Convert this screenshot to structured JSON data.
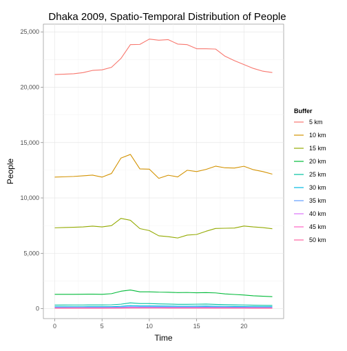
{
  "chart_data": {
    "type": "line",
    "title": "Dhaka 2009, Spatio-Temporal Distribution of People",
    "xlabel": "Time",
    "ylabel": "People",
    "xlim": [
      -1.2,
      24.2
    ],
    "ylim": [
      -900,
      25700
    ],
    "x_ticks": [
      0,
      5,
      10,
      15,
      20
    ],
    "y_ticks": [
      0,
      5000,
      10000,
      15000,
      20000,
      25000
    ],
    "y_tick_labels": [
      "0",
      "5,000",
      "10,000",
      "15,000",
      "20,000",
      "25,000"
    ],
    "grid": true,
    "legend": {
      "title": "Buffer",
      "placement": "right"
    },
    "x": [
      0,
      1,
      2,
      3,
      4,
      5,
      6,
      7,
      8,
      9,
      10,
      11,
      12,
      13,
      14,
      15,
      16,
      17,
      18,
      19,
      20,
      21,
      22,
      23
    ],
    "series": [
      {
        "name": "5 km",
        "color": "#F8766D",
        "values": [
          21150,
          21180,
          21220,
          21320,
          21520,
          21570,
          21800,
          22600,
          23850,
          23870,
          24350,
          24250,
          24300,
          23900,
          23850,
          23480,
          23480,
          23450,
          22800,
          22400,
          22050,
          21700,
          21450,
          21330
        ]
      },
      {
        "name": "10 km",
        "color": "#D39200",
        "values": [
          11880,
          11910,
          11940,
          12000,
          12060,
          11880,
          12210,
          13600,
          13930,
          12620,
          12600,
          11770,
          12050,
          11900,
          12500,
          12380,
          12580,
          12870,
          12720,
          12700,
          12860,
          12550,
          12380,
          12150
        ]
      },
      {
        "name": "15 km",
        "color": "#93AA00",
        "values": [
          7300,
          7330,
          7350,
          7380,
          7450,
          7380,
          7500,
          8150,
          7980,
          7230,
          7050,
          6580,
          6500,
          6380,
          6640,
          6700,
          6990,
          7240,
          7260,
          7280,
          7460,
          7380,
          7320,
          7220
        ]
      },
      {
        "name": "20 km",
        "color": "#00BA38",
        "values": [
          1290,
          1290,
          1290,
          1300,
          1310,
          1290,
          1350,
          1570,
          1680,
          1520,
          1520,
          1490,
          1480,
          1450,
          1460,
          1430,
          1450,
          1420,
          1330,
          1280,
          1230,
          1160,
          1120,
          1080
        ]
      },
      {
        "name": "25 km",
        "color": "#00C19F",
        "values": [
          320,
          325,
          330,
          330,
          335,
          335,
          345,
          400,
          520,
          460,
          460,
          430,
          410,
          390,
          390,
          400,
          410,
          380,
          360,
          340,
          330,
          310,
          295,
          285
        ]
      },
      {
        "name": "30 km",
        "color": "#00B9E3",
        "values": [
          170,
          172,
          174,
          175,
          176,
          176,
          180,
          210,
          280,
          250,
          250,
          240,
          230,
          220,
          220,
          225,
          230,
          215,
          205,
          195,
          190,
          180,
          172,
          168
        ]
      },
      {
        "name": "35 km",
        "color": "#619CFF",
        "values": [
          110,
          111,
          112,
          113,
          114,
          114,
          117,
          135,
          175,
          160,
          160,
          152,
          146,
          140,
          140,
          143,
          146,
          138,
          132,
          126,
          122,
          117,
          113,
          110
        ]
      },
      {
        "name": "40 km",
        "color": "#DB72FB",
        "values": [
          80,
          81,
          81,
          82,
          82,
          82,
          84,
          96,
          120,
          110,
          110,
          105,
          101,
          98,
          98,
          100,
          101,
          96,
          92,
          88,
          86,
          83,
          81,
          79
        ]
      },
      {
        "name": "45 km",
        "color": "#FF61C3",
        "values": [
          55,
          55,
          56,
          56,
          56,
          56,
          57,
          64,
          78,
          72,
          72,
          69,
          67,
          65,
          65,
          66,
          67,
          64,
          61,
          59,
          58,
          56,
          55,
          54
        ]
      },
      {
        "name": "50 km",
        "color": "#FF61A0",
        "values": [
          40,
          40,
          40,
          41,
          41,
          41,
          42,
          47,
          56,
          52,
          52,
          50,
          48,
          47,
          47,
          48,
          48,
          46,
          45,
          43,
          42,
          41,
          40,
          39
        ]
      }
    ]
  }
}
